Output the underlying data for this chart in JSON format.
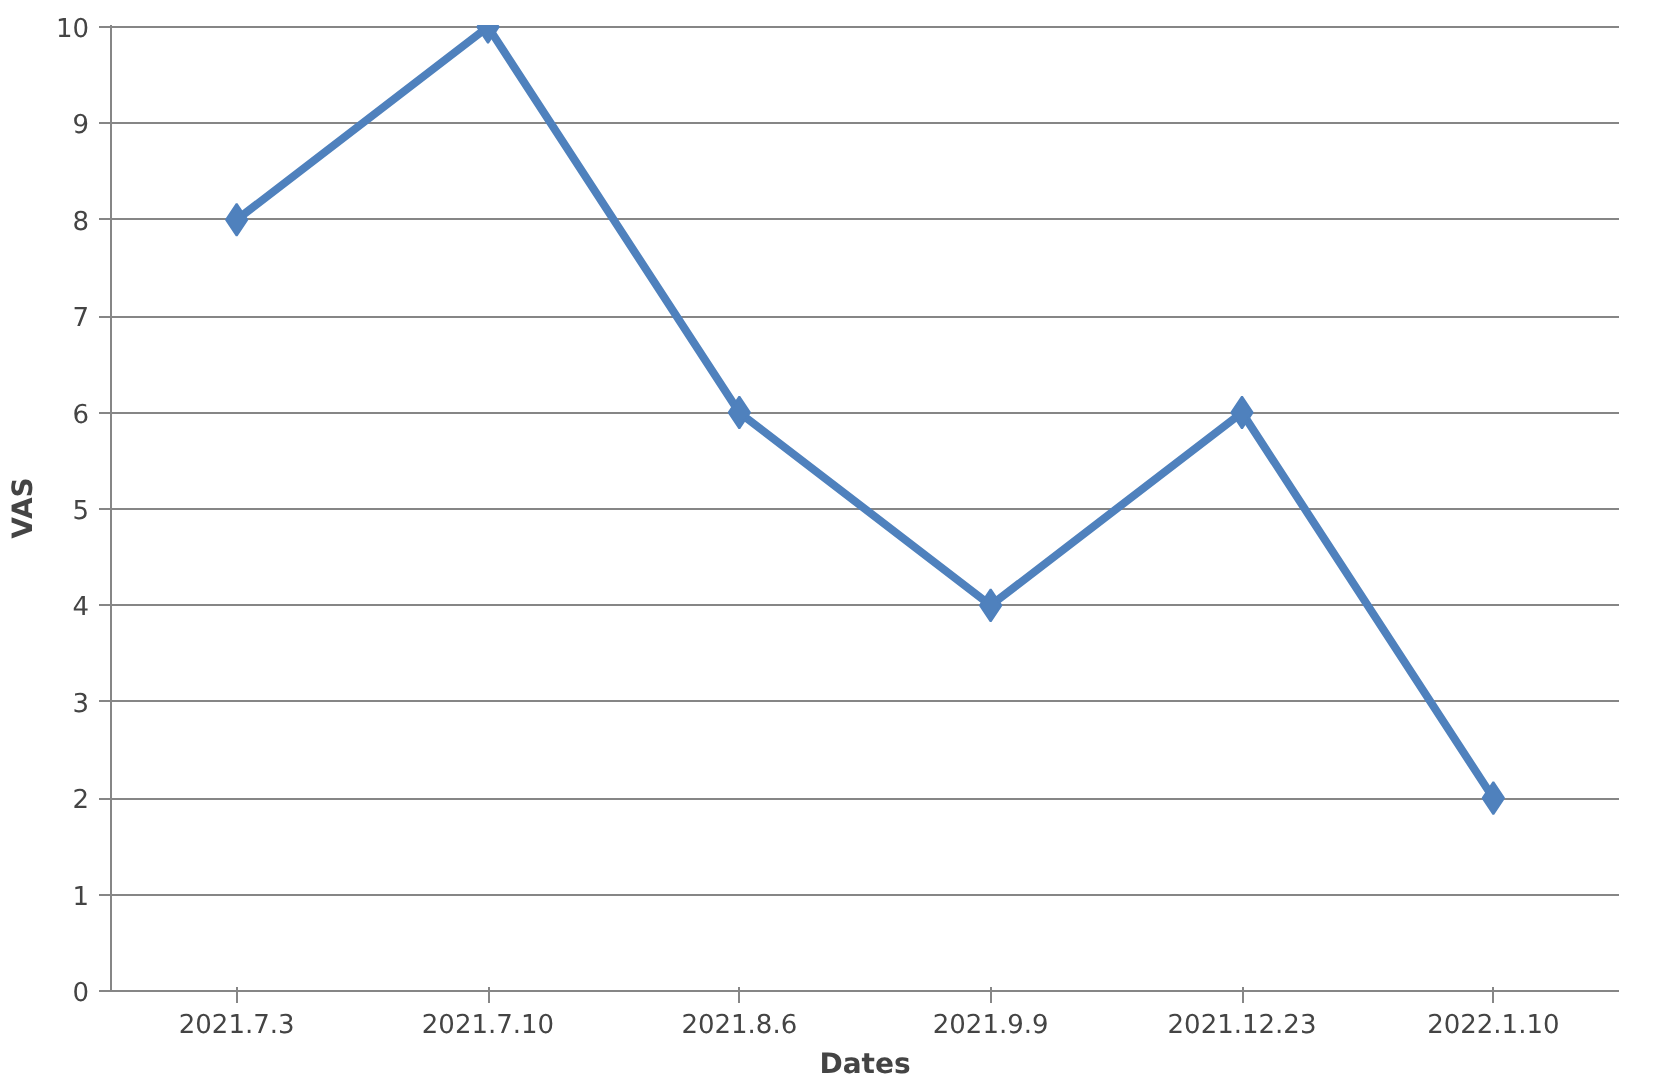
{
  "chart_data": {
    "type": "line",
    "xlabel": "Dates",
    "ylabel": "VAS",
    "categories": [
      "2021.7.3",
      "2021.7.10",
      "2021.8.6",
      "2021.9.9",
      "2021.12.23",
      "2022.1.10"
    ],
    "series": [
      {
        "color": "#4f81bd",
        "values": [
          8,
          10,
          6,
          4,
          6,
          2
        ]
      }
    ],
    "ylim": [
      0,
      10
    ],
    "yticks": [
      0,
      1,
      2,
      3,
      4,
      5,
      6,
      7,
      8,
      9,
      10
    ],
    "grid": "y",
    "marker": "diamond",
    "line_style": "solid"
  }
}
